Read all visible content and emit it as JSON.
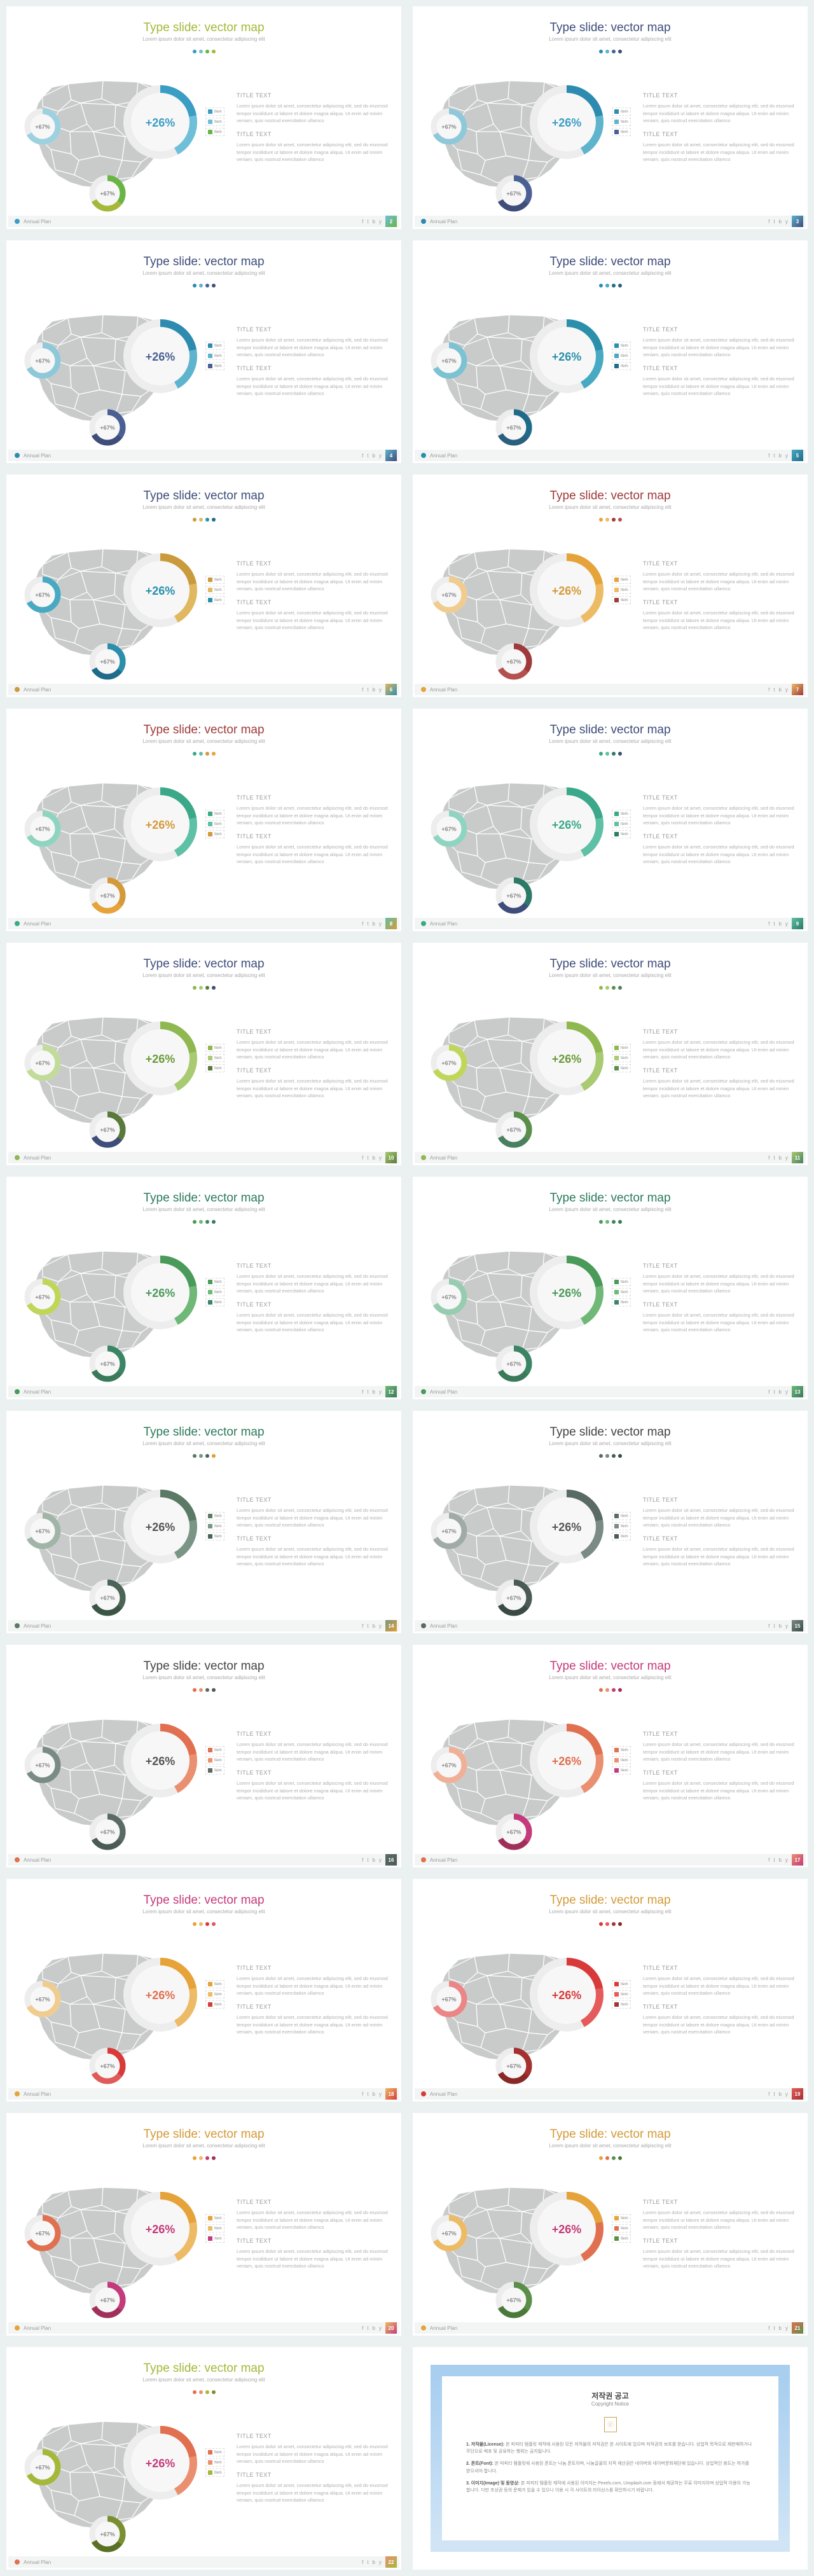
{
  "common": {
    "title": "Type slide: vector map",
    "subtitle": "Lorem ipsum dolor sit amet, consectetur adipiscing elit",
    "main_pct": "+26%",
    "small_pct": "+67%",
    "footer_label": "Annual Plan",
    "title_text_label": "TITLE TEXT",
    "body_para": "Lorem ipsum dolor sit amet, consectetur adipiscing elit, sed do eiusmod tempor incididunt ut labore et dolore magna aliqua. Ut enim ad minim veniam, quis nostrud exercitation ullamco",
    "legend_items": [
      "Item",
      "Item",
      "Item"
    ],
    "social_glyphs": [
      "f",
      "t",
      "b",
      "y"
    ]
  },
  "copyright": {
    "title": "저작권 공고",
    "sub": "Copyright Notice",
    "p1_label": "1. 저작물(License):",
    "p1": "본 피피티 템플릿 제작에 사용된 모든 저작물의 저작권은 본 사이트에 있으며 저작권의 보호를 받습니다. 상업적 목적으로 재판매하거나 무단으로 배포 및 공유하는 행위는 금지됩니다.",
    "p2_label": "2. 폰트(Font):",
    "p2": "본 피피티 템플릿에 사용된 폰트는 나눔 폰트이며, 나눔글꼴의 지적 재산권은 네이버와 네이버문화재단에 있습니다. 상업적인 용도는 허가를 받으셔야 합니다.",
    "p3_label": "3. 이미지(Image) 및 동영상:",
    "p3": "본 피피티 템플릿 제작에 사용된 이미지는 Pexels.com, Unsplash.com 등에서 제공하는 무료 이미지이며 상업적 이용이 가능합니다. 다만 초상권 등의 문제가 있을 수 있으니 이용 시 각 사이트의 라이선스를 확인하시기 바랍니다."
  },
  "slides": [
    {
      "num": "2",
      "title_color": "#a5b83a",
      "pct_color": "#3b9dc4",
      "arc1": "#3b9dc4",
      "arc2": "#6fbfd8",
      "sm1": "#9dd1e0",
      "sm2": "#68b546",
      "sm2b": "#a5b83a",
      "dots": [
        "#3b9dc4",
        "#6fbfd8",
        "#68b546",
        "#a5b83a"
      ],
      "ft_dot": "#3b9dc4",
      "ft_grad": [
        "#6fbfd8",
        "#68b546"
      ],
      "leg": [
        "#3b9dc4",
        "#6fbfd8",
        "#68b546"
      ]
    },
    {
      "num": "3",
      "title_color": "#3e4d7a",
      "pct_color": "#3b9dc4",
      "arc1": "#2d8bb0",
      "arc2": "#5eb3cd",
      "sm1": "#8fc9d9",
      "sm2": "#4a5f94",
      "sm2b": "#3e4d7a",
      "dots": [
        "#2d8bb0",
        "#5eb3cd",
        "#4a5f94",
        "#3e4d7a"
      ],
      "ft_dot": "#2d8bb0",
      "ft_grad": [
        "#5eb3cd",
        "#3e4d7a"
      ],
      "leg": [
        "#2d8bb0",
        "#5eb3cd",
        "#4a5f94"
      ]
    },
    {
      "num": "4",
      "title_color": "#3e4d7a",
      "pct_color": "#4a5f94",
      "arc1": "#2d8bb0",
      "arc2": "#5eb3cd",
      "sm1": "#8fc9d9",
      "sm2": "#4a5f94",
      "sm2b": "#3e4d7a",
      "dots": [
        "#2d8bb0",
        "#5eb3cd",
        "#4a5f94",
        "#3e4d7a"
      ],
      "ft_dot": "#2d8bb0",
      "ft_grad": [
        "#5eb3cd",
        "#3e4d7a"
      ],
      "leg": [
        "#2d8bb0",
        "#5eb3cd",
        "#4a5f94"
      ]
    },
    {
      "num": "5",
      "title_color": "#3e4d7a",
      "pct_color": "#2a8fab",
      "arc1": "#2a8fab",
      "arc2": "#48a9c2",
      "sm1": "#7bc2d3",
      "sm2": "#1f6b89",
      "sm2b": "#2a5f80",
      "dots": [
        "#2a8fab",
        "#48a9c2",
        "#1f6b89",
        "#2a5f80"
      ],
      "ft_dot": "#2a8fab",
      "ft_grad": [
        "#48a9c2",
        "#1f6b89"
      ],
      "leg": [
        "#2a8fab",
        "#48a9c2",
        "#1f6b89"
      ]
    },
    {
      "num": "6",
      "title_color": "#3e4d7a",
      "pct_color": "#2a8fab",
      "arc1": "#c99b3c",
      "arc2": "#e0b860",
      "sm1": "#48a9c2",
      "sm2": "#2a8fab",
      "sm2b": "#1f6b89",
      "dots": [
        "#c99b3c",
        "#e0b860",
        "#2a8fab",
        "#1f6b89"
      ],
      "ft_dot": "#c99b3c",
      "ft_grad": [
        "#e0b860",
        "#2a8fab"
      ],
      "leg": [
        "#c99b3c",
        "#e0b860",
        "#2a8fab"
      ]
    },
    {
      "num": "7",
      "title_color": "#9e3a3a",
      "pct_color": "#d49a3a",
      "arc1": "#e5a33a",
      "arc2": "#edbb65",
      "sm1": "#f0cd8f",
      "sm2": "#9e3a3a",
      "sm2b": "#b55050",
      "dots": [
        "#e5a33a",
        "#edbb65",
        "#9e3a3a",
        "#b55050"
      ],
      "ft_dot": "#e5a33a",
      "ft_grad": [
        "#edbb65",
        "#9e3a3a"
      ],
      "leg": [
        "#e5a33a",
        "#edbb65",
        "#9e3a3a"
      ]
    },
    {
      "num": "8",
      "title_color": "#9e3a3a",
      "pct_color": "#d49a3a",
      "arc1": "#3aa889",
      "arc2": "#5ec0a5",
      "sm1": "#8fd4c1",
      "sm2": "#d49a3a",
      "sm2b": "#e5a33a",
      "dots": [
        "#3aa889",
        "#5ec0a5",
        "#d49a3a",
        "#e5a33a"
      ],
      "ft_dot": "#3aa889",
      "ft_grad": [
        "#5ec0a5",
        "#d49a3a"
      ],
      "leg": [
        "#3aa889",
        "#5ec0a5",
        "#d49a3a"
      ]
    },
    {
      "num": "9",
      "title_color": "#3e4d7a",
      "pct_color": "#3aa889",
      "arc1": "#3aa889",
      "arc2": "#5ec0a5",
      "sm1": "#8fd4c1",
      "sm2": "#2a7a65",
      "sm2b": "#3e4d7a",
      "dots": [
        "#3aa889",
        "#5ec0a5",
        "#2a7a65",
        "#3e4d7a"
      ],
      "ft_dot": "#3aa889",
      "ft_grad": [
        "#5ec0a5",
        "#2a7a65"
      ],
      "leg": [
        "#3aa889",
        "#5ec0a5",
        "#2a7a65"
      ]
    },
    {
      "num": "10",
      "title_color": "#3e4d7a",
      "pct_color": "#6a9a3a",
      "arc1": "#8fb850",
      "arc2": "#a8ca70",
      "sm1": "#c2db9a",
      "sm2": "#5a7a3a",
      "sm2b": "#3e4d7a",
      "dots": [
        "#8fb850",
        "#a8ca70",
        "#5a7a3a",
        "#3e4d7a"
      ],
      "ft_dot": "#8fb850",
      "ft_grad": [
        "#a8ca70",
        "#5a7a3a"
      ],
      "leg": [
        "#8fb850",
        "#a8ca70",
        "#5a7a3a"
      ]
    },
    {
      "num": "11",
      "title_color": "#3e4d7a",
      "pct_color": "#6a9a3a",
      "arc1": "#8fb850",
      "arc2": "#a8ca70",
      "sm1": "#bfd658",
      "sm2": "#5a8f4a",
      "sm2b": "#488060",
      "dots": [
        "#8fb850",
        "#a8ca70",
        "#5a8f4a",
        "#488060"
      ],
      "ft_dot": "#8fb850",
      "ft_grad": [
        "#a8ca70",
        "#488060"
      ],
      "leg": [
        "#8fb850",
        "#a8ca70",
        "#5a8f4a"
      ]
    },
    {
      "num": "12",
      "title_color": "#2a7a5a",
      "pct_color": "#4a9a5a",
      "arc1": "#4a9a5a",
      "arc2": "#6fb878",
      "sm1": "#bfd658",
      "sm2": "#3a8565",
      "sm2b": "#3a7a5a",
      "dots": [
        "#4a9a5a",
        "#6fb878",
        "#3a8565",
        "#3a7a5a"
      ],
      "ft_dot": "#4a9a5a",
      "ft_grad": [
        "#6fb878",
        "#3a7a5a"
      ],
      "leg": [
        "#4a9a5a",
        "#6fb878",
        "#3a8565"
      ]
    },
    {
      "num": "13",
      "title_color": "#2a7a5a",
      "pct_color": "#4a9a5a",
      "arc1": "#4a9a5a",
      "arc2": "#6fb878",
      "sm1": "#98ccb0",
      "sm2": "#3a8565",
      "sm2b": "#3a7a5a",
      "dots": [
        "#4a9a5a",
        "#6fb878",
        "#3a8565",
        "#3a7a5a"
      ],
      "ft_dot": "#4a9a5a",
      "ft_grad": [
        "#6fb878",
        "#3a7a5a"
      ],
      "leg": [
        "#4a9a5a",
        "#6fb878",
        "#3a8565"
      ]
    },
    {
      "num": "14",
      "title_color": "#2a7a5a",
      "pct_color": "#555",
      "arc1": "#5a7a65",
      "arc2": "#7a9585",
      "sm1": "#a0b5a8",
      "sm2": "#4a6555",
      "sm2b": "#3a5545",
      "dots": [
        "#5a7a65",
        "#7a9585",
        "#4a6555",
        "#e0a030"
      ],
      "ft_dot": "#5a7a65",
      "ft_grad": [
        "#7a9585",
        "#e0a030"
      ],
      "leg": [
        "#5a7a65",
        "#7a9585",
        "#4a6555"
      ]
    },
    {
      "num": "15",
      "title_color": "#444",
      "pct_color": "#555",
      "arc1": "#5a6a65",
      "arc2": "#7a8a85",
      "sm1": "#a0aba8",
      "sm2": "#4a5a55",
      "sm2b": "#3a4a45",
      "dots": [
        "#5a6a65",
        "#7a8a85",
        "#4a5a55",
        "#3a4a45"
      ],
      "ft_dot": "#5a6a65",
      "ft_grad": [
        "#7a8a85",
        "#3a4a45"
      ],
      "leg": [
        "#5a6a65",
        "#7a8a85",
        "#4a5a55"
      ]
    },
    {
      "num": "16",
      "title_color": "#444",
      "pct_color": "#555",
      "arc1": "#e07050",
      "arc2": "#ea9070",
      "sm1": "#7a8a85",
      "sm2": "#5a6a65",
      "sm2b": "#4a5a55",
      "dots": [
        "#e07050",
        "#ea9070",
        "#5a6a65",
        "#4a5a55"
      ],
      "ft_dot": "#e07050",
      "ft_grad": [
        "#5a6a65",
        "#4a5a55"
      ],
      "leg": [
        "#e07050",
        "#ea9070",
        "#5a6a65"
      ]
    },
    {
      "num": "17",
      "title_color": "#c43a7a",
      "pct_color": "#e07050",
      "arc1": "#e07050",
      "arc2": "#ea9070",
      "sm1": "#f0b098",
      "sm2": "#c43a7a",
      "sm2b": "#a0305a",
      "dots": [
        "#e07050",
        "#ea9070",
        "#c43a7a",
        "#a0305a"
      ],
      "ft_dot": "#e07050",
      "ft_grad": [
        "#ea9070",
        "#c43a7a"
      ],
      "leg": [
        "#e07050",
        "#ea9070",
        "#c43a7a"
      ]
    },
    {
      "num": "18",
      "title_color": "#c43a7a",
      "pct_color": "#e07050",
      "arc1": "#e5a33a",
      "arc2": "#edbb65",
      "sm1": "#f0cd8f",
      "sm2": "#d83a3a",
      "sm2b": "#e05a5a",
      "dots": [
        "#e5a33a",
        "#edbb65",
        "#d83a3a",
        "#e05a5a"
      ],
      "ft_dot": "#e5a33a",
      "ft_grad": [
        "#edbb65",
        "#d83a3a"
      ],
      "leg": [
        "#e5a33a",
        "#edbb65",
        "#d83a3a"
      ]
    },
    {
      "num": "19",
      "title_color": "#d49a3a",
      "pct_color": "#d83a3a",
      "arc1": "#d83a3a",
      "arc2": "#e55a5a",
      "sm1": "#ec8585",
      "sm2": "#a53030",
      "sm2b": "#8a2828",
      "dots": [
        "#d83a3a",
        "#e55a5a",
        "#a53030",
        "#8a2828"
      ],
      "ft_dot": "#d83a3a",
      "ft_grad": [
        "#e55a5a",
        "#a53030"
      ],
      "leg": [
        "#d83a3a",
        "#e55a5a",
        "#a53030"
      ]
    },
    {
      "num": "20",
      "title_color": "#d49a3a",
      "pct_color": "#c43a7a",
      "arc1": "#e5a33a",
      "arc2": "#edbb65",
      "sm1": "#e07050",
      "sm2": "#c43a7a",
      "sm2b": "#a0305a",
      "dots": [
        "#e5a33a",
        "#edbb65",
        "#c43a7a",
        "#a0305a"
      ],
      "ft_dot": "#e5a33a",
      "ft_grad": [
        "#edbb65",
        "#c43a7a"
      ],
      "leg": [
        "#e5a33a",
        "#edbb65",
        "#c43a7a"
      ]
    },
    {
      "num": "21",
      "title_color": "#d49a3a",
      "pct_color": "#c43a7a",
      "arc1": "#e5a33a",
      "arc2": "#e07050",
      "sm1": "#edbb65",
      "sm2": "#5a8f4a",
      "sm2b": "#4a7a3a",
      "dots": [
        "#e5a33a",
        "#e07050",
        "#5a8f4a",
        "#4a7a3a"
      ],
      "ft_dot": "#e5a33a",
      "ft_grad": [
        "#e07050",
        "#5a8f4a"
      ],
      "leg": [
        "#e5a33a",
        "#e07050",
        "#5a8f4a"
      ]
    },
    {
      "num": "22",
      "title_color": "#a5b83a",
      "pct_color": "#c43a7a",
      "arc1": "#e07050",
      "arc2": "#ea9070",
      "sm1": "#a5b83a",
      "sm2": "#7a9030",
      "sm2b": "#5a7025",
      "dots": [
        "#e07050",
        "#ea9070",
        "#a5b83a",
        "#7a9030"
      ],
      "ft_dot": "#e07050",
      "ft_grad": [
        "#ea9070",
        "#a5b83a"
      ],
      "leg": [
        "#e07050",
        "#ea9070",
        "#a5b83a"
      ]
    }
  ]
}
